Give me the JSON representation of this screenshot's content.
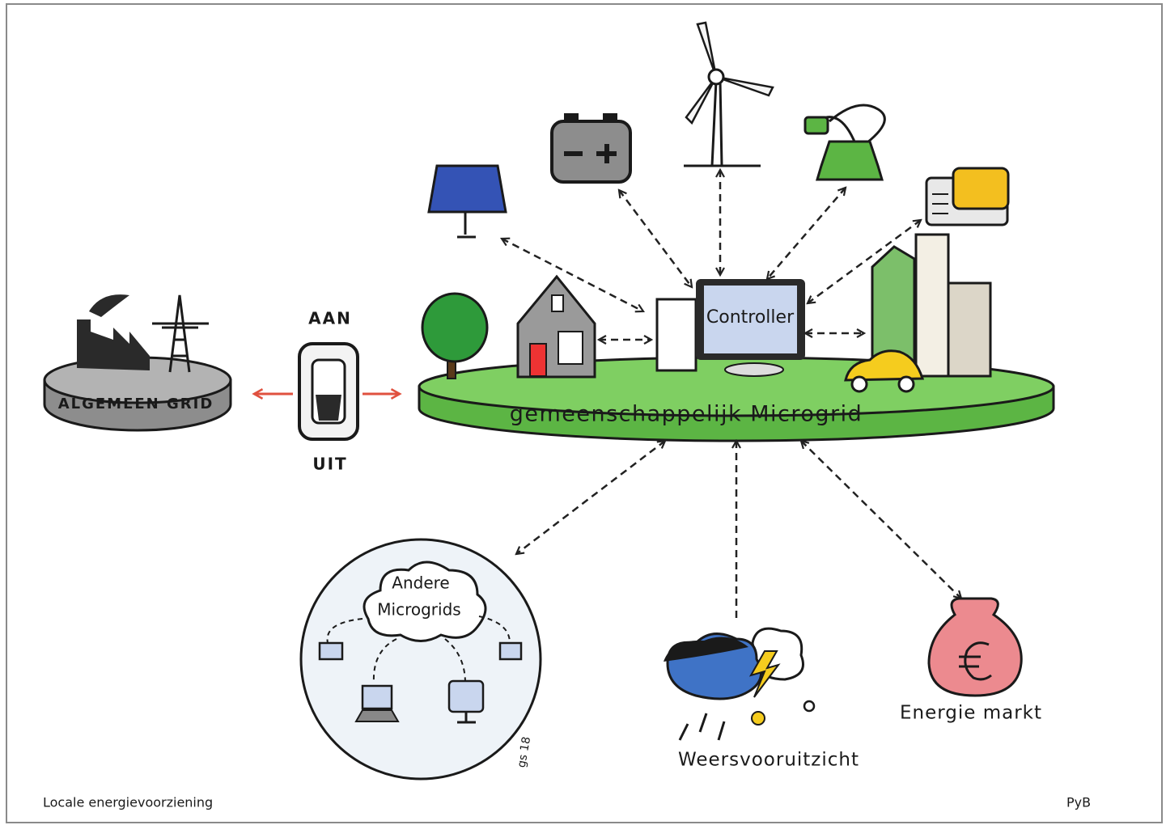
{
  "frame": {
    "caption": "Locale energievoorziening",
    "credit": "PyB",
    "signature": "gs 18"
  },
  "nodes": {
    "controller": "Controller",
    "switch_on": "AAN",
    "switch_off": "UIT",
    "main_grid": "ALGEMEEN GRID",
    "microgrid": "gemeenschappelijk Microgrid",
    "other_microgrids": [
      "Andere",
      "Microgrids"
    ],
    "weather": "Weersvooruitzicht",
    "market": "Energie markt"
  }
}
